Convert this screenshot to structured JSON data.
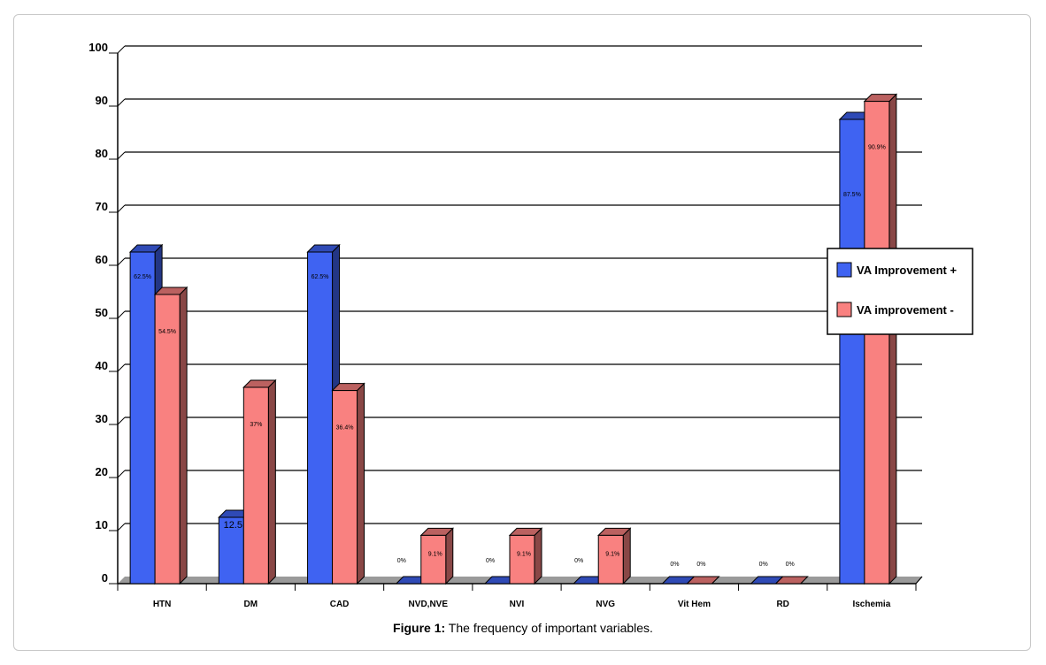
{
  "caption": {
    "label": "Figure 1:",
    "text": " The frequency of important variables."
  },
  "chart_data": {
    "type": "bar",
    "style": "3d-clustered",
    "categories": [
      "HTN",
      "DM",
      "CAD",
      "NVD,NVE",
      "NVI",
      "NVG",
      "Vit Hem",
      "RD",
      "Ischemia"
    ],
    "ylim": [
      0,
      100
    ],
    "yticks": [
      0,
      10,
      20,
      30,
      40,
      50,
      60,
      70,
      80,
      90,
      100
    ],
    "grid": true,
    "legend_position": "right",
    "series": [
      {
        "name": "VA Improvement +",
        "color": "#3f63f2",
        "values": [
          62.5,
          12.5,
          62.5,
          0,
          0,
          0,
          0,
          0,
          87.5
        ],
        "labels": [
          "62.5%",
          "12.5",
          "62.5%",
          "0%",
          "0%",
          "0%",
          "0%",
          "0%",
          "87.5%"
        ]
      },
      {
        "name": "VA improvement -",
        "color": "#f98180",
        "values": [
          54.5,
          37,
          36.4,
          9.1,
          9.1,
          9.1,
          0,
          0,
          90.9
        ],
        "labels": [
          "54.5%",
          "37%",
          "36.4%",
          "9.1%",
          "9.1%",
          "9.1%",
          "0%",
          "0%",
          "90.9%"
        ]
      }
    ]
  }
}
